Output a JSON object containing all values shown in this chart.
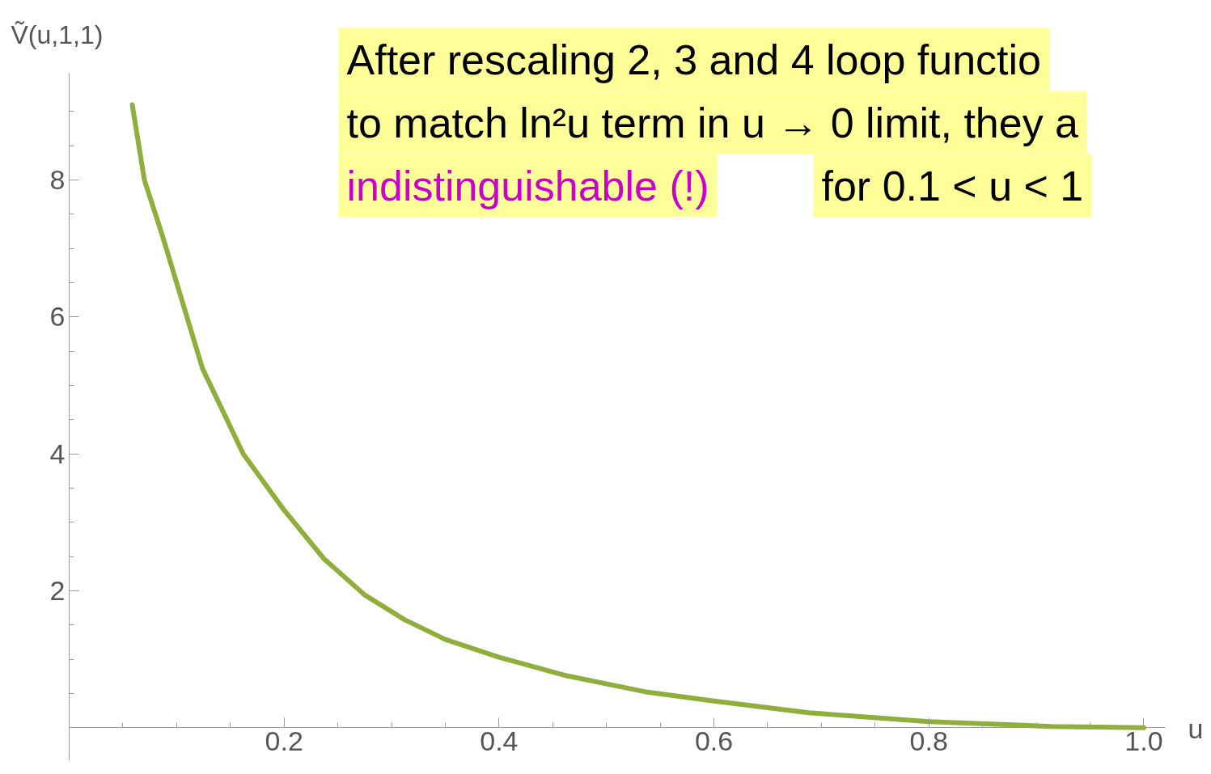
{
  "chart_data": {
    "type": "line",
    "xlabel": "u",
    "ylabel": "Ṽ(u,1,1)",
    "x": [
      0.0587,
      0.07,
      0.0865,
      0.1,
      0.124,
      0.162,
      0.2,
      0.237,
      0.275,
      0.312,
      0.35,
      0.4,
      0.463,
      0.538,
      0.6,
      0.688,
      0.8,
      0.914,
      1.0
    ],
    "series": [
      {
        "color": "#8fae3c",
        "values": [
          9.1,
          8.0,
          7.2,
          6.5,
          5.25,
          4.0,
          3.18,
          2.47,
          1.94,
          1.58,
          1.29,
          1.03,
          0.76,
          0.52,
          0.39,
          0.22,
          0.09,
          0.02,
          0.0
        ]
      }
    ],
    "xlim": [
      0,
      1.02
    ],
    "ylim": [
      -0.48,
      9.56
    ],
    "xticks": [
      {
        "value": 0.05,
        "label": null
      },
      {
        "value": 0.1,
        "label": null
      },
      {
        "value": 0.15,
        "label": null
      },
      0.2,
      {
        "value": 0.25,
        "label": null
      },
      {
        "value": 0.3,
        "label": null
      },
      {
        "value": 0.35,
        "label": null
      },
      0.4,
      {
        "value": 0.45,
        "label": null
      },
      {
        "value": 0.5,
        "label": null
      },
      {
        "value": 0.55,
        "label": null
      },
      0.6,
      {
        "value": 0.65,
        "label": null
      },
      {
        "value": 0.7,
        "label": null
      },
      {
        "value": 0.75,
        "label": null
      },
      0.8,
      {
        "value": 0.85,
        "label": null
      },
      {
        "value": 0.9,
        "label": null
      },
      {
        "value": 0.95,
        "label": null
      },
      {
        "value": 1.0,
        "label": "1.0"
      }
    ],
    "yticks": [
      {
        "value": 0.5,
        "label": null
      },
      {
        "value": 1,
        "label": null
      },
      {
        "value": 1.5,
        "label": null
      },
      2,
      {
        "value": 2.5,
        "label": null
      },
      {
        "value": 3,
        "label": null
      },
      {
        "value": 3.5,
        "label": null
      },
      4,
      {
        "value": 4.5,
        "label": null
      },
      {
        "value": 5,
        "label": null
      },
      {
        "value": 5.5,
        "label": null
      },
      6,
      {
        "value": 6.5,
        "label": null
      },
      {
        "value": 7,
        "label": null
      },
      {
        "value": 7.5,
        "label": null
      },
      8,
      {
        "value": 8.5,
        "label": null
      },
      {
        "value": 9,
        "label": null
      }
    ],
    "grid": false,
    "marker": "none",
    "line_style": "solid",
    "annotations": [
      "After rescaling 2, 3 and 4 loop functio",
      "to match ln²u term in u → 0 limit, they a",
      "indistinguishable (!)",
      "for 0.1 < u < 1"
    ]
  }
}
